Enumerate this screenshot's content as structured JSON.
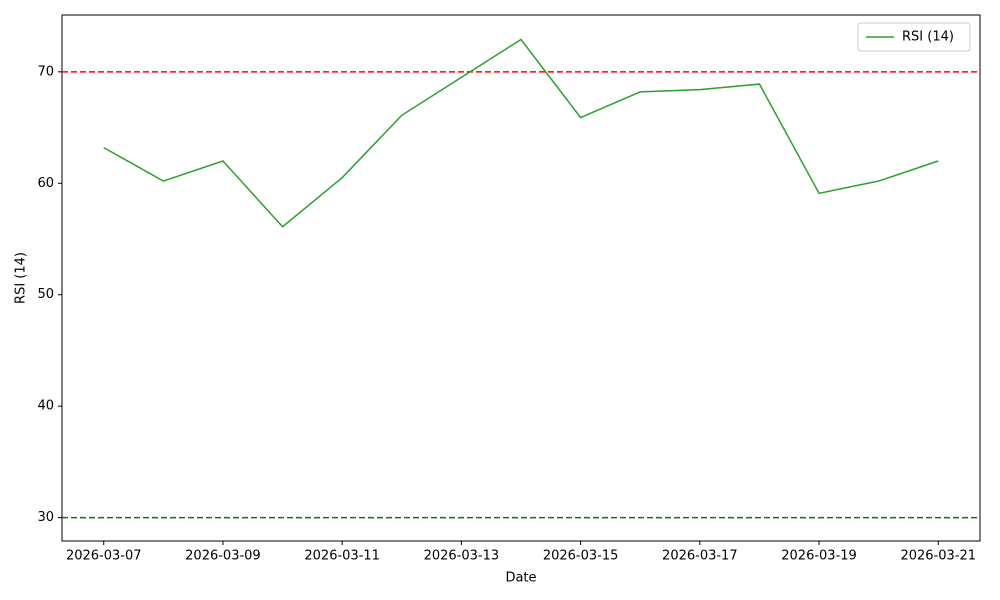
{
  "chart_data": {
    "type": "line",
    "xlabel": "Date",
    "ylabel": "RSI (14)",
    "x": [
      "2026-03-07",
      "2026-03-08",
      "2026-03-09",
      "2026-03-10",
      "2026-03-11",
      "2026-03-12",
      "2026-03-13",
      "2026-03-14",
      "2026-03-15",
      "2026-03-16",
      "2026-03-17",
      "2026-03-18",
      "2026-03-19",
      "2026-03-20",
      "2026-03-21"
    ],
    "series": [
      {
        "name": "RSI (14)",
        "color": "#2ca02c",
        "values": [
          63.2,
          60.2,
          62.0,
          56.1,
          60.5,
          66.1,
          69.5,
          72.9,
          65.9,
          68.2,
          68.4,
          68.9,
          59.1,
          60.2,
          62.0
        ]
      }
    ],
    "hlines": [
      {
        "value": 70,
        "color": "#ff0000"
      },
      {
        "value": 30,
        "color": "#008000"
      }
    ],
    "ylim": [
      27.9,
      75.1
    ],
    "yticks": [
      30,
      40,
      50,
      60,
      70
    ],
    "xticks": [
      "2026-03-07",
      "2026-03-09",
      "2026-03-11",
      "2026-03-13",
      "2026-03-15",
      "2026-03-17",
      "2026-03-19",
      "2026-03-21"
    ],
    "legend": "upper right"
  }
}
